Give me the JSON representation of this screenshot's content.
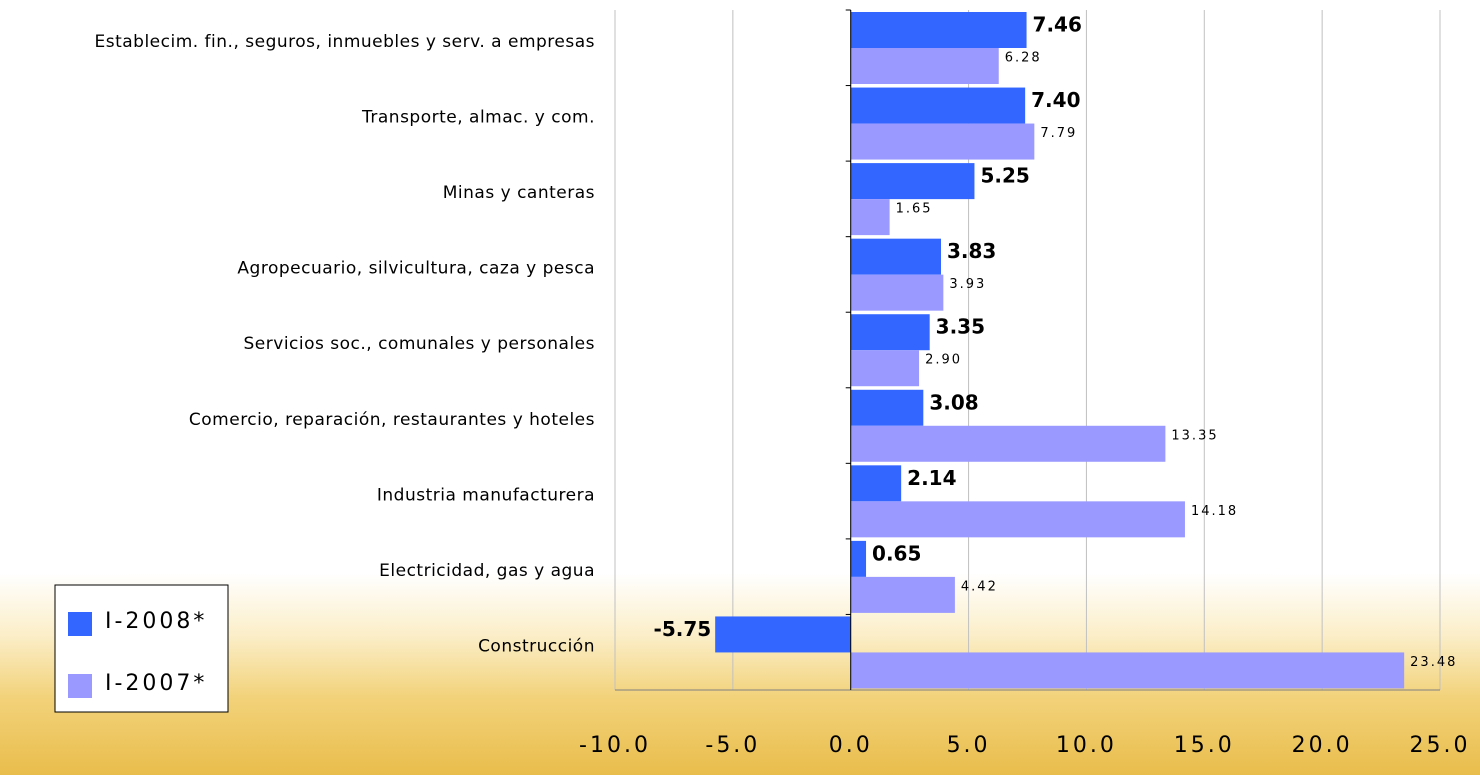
{
  "chart_data": {
    "type": "hbar",
    "categories": [
      "Establecim. fin., seguros, inmuebles y serv. a empresas",
      "Transporte, almac. y com.",
      "Minas y canteras",
      "Agropecuario, silvicultura, caza y pesca",
      "Servicios soc., comunales y personales",
      "Comercio, reparación, restaurantes y hoteles",
      "Industria manufacturera",
      "Electricidad, gas y agua",
      "Construcción"
    ],
    "series": [
      {
        "name": "I-2008*",
        "color": "#3366ff",
        "values": [
          7.46,
          7.4,
          5.25,
          3.83,
          3.35,
          3.08,
          2.14,
          0.65,
          -5.75
        ],
        "value_labels": [
          "7.46",
          "7.40",
          "5.25",
          "3.83",
          "3.35",
          "3.08",
          "2.14",
          "0.65",
          "-5.75"
        ]
      },
      {
        "name": "I-2007*",
        "color": "#9999ff",
        "values": [
          6.28,
          7.79,
          1.65,
          3.93,
          2.9,
          13.35,
          14.18,
          4.42,
          23.48
        ],
        "value_labels": [
          "6.28",
          "7.79",
          "1.65",
          "3.93",
          "2.90",
          "13.35",
          "14.18",
          "4.42",
          "23.48"
        ]
      }
    ],
    "xlim": [
      -10,
      25
    ],
    "xticks": [
      {
        "value": -10,
        "label": "-10.0"
      },
      {
        "value": -5,
        "label": "-5.0"
      },
      {
        "value": 0,
        "label": "0.0"
      },
      {
        "value": 5,
        "label": "5.0"
      },
      {
        "value": 10,
        "label": "10.0"
      },
      {
        "value": 15,
        "label": "15.0"
      },
      {
        "value": 20,
        "label": "20.0"
      },
      {
        "value": 25,
        "label": "25.0"
      }
    ],
    "grid": true,
    "legend": "lower left"
  }
}
